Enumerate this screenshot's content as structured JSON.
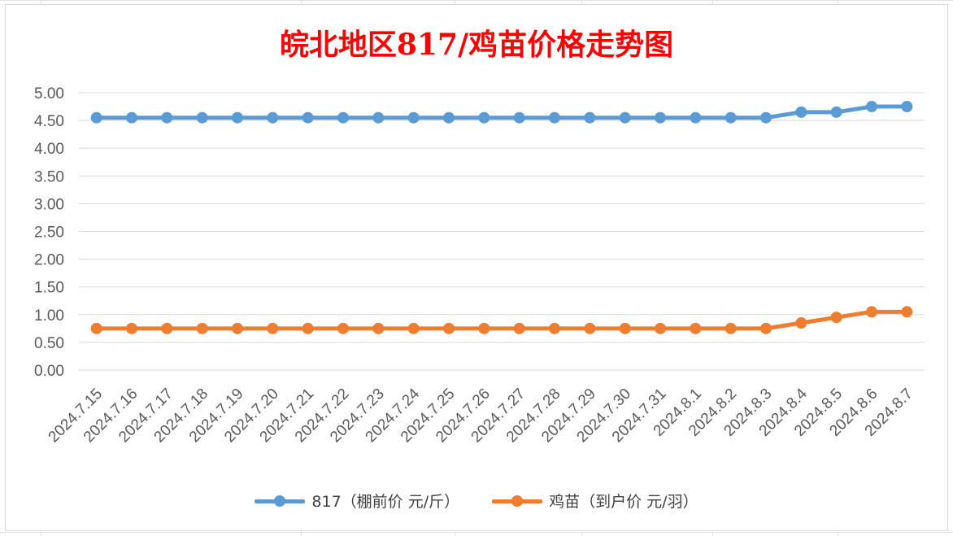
{
  "chart_data": {
    "type": "line",
    "title": "皖北地区817/鸡苗价格走势图",
    "categories": [
      "2024.7.15",
      "2024.7.16",
      "2024.7.17",
      "2024.7.18",
      "2024.7.19",
      "2024.7.20",
      "2024.7.21",
      "2024.7.22",
      "2024.7.23",
      "2024.7.24",
      "2024.7.25",
      "2024.7.26",
      "2024.7.27",
      "2024.7.28",
      "2024.7.29",
      "2024.7.30",
      "2024.7.31",
      "2024.8.1",
      "2024.8.2",
      "2024.8.3",
      "2024.8.4",
      "2024.8.5",
      "2024.8.6",
      "2024.8.7"
    ],
    "yticks": [
      "0.00",
      "0.50",
      "1.00",
      "1.50",
      "2.00",
      "2.50",
      "3.00",
      "3.50",
      "4.00",
      "4.50",
      "5.00"
    ],
    "ylim": [
      0,
      5
    ],
    "grid": true,
    "legend_position": "bottom",
    "series": [
      {
        "name": "817（棚前价 元/斤）",
        "color": "#5b9bd5",
        "values": [
          4.55,
          4.55,
          4.55,
          4.55,
          4.55,
          4.55,
          4.55,
          4.55,
          4.55,
          4.55,
          4.55,
          4.55,
          4.55,
          4.55,
          4.55,
          4.55,
          4.55,
          4.55,
          4.55,
          4.55,
          4.65,
          4.65,
          4.75,
          4.75
        ]
      },
      {
        "name": "鸡苗（到户价 元/羽）",
        "color": "#ed7d31",
        "values": [
          0.75,
          0.75,
          0.75,
          0.75,
          0.75,
          0.75,
          0.75,
          0.75,
          0.75,
          0.75,
          0.75,
          0.75,
          0.75,
          0.75,
          0.75,
          0.75,
          0.75,
          0.75,
          0.75,
          0.75,
          0.85,
          0.95,
          1.05,
          1.05
        ]
      }
    ]
  }
}
